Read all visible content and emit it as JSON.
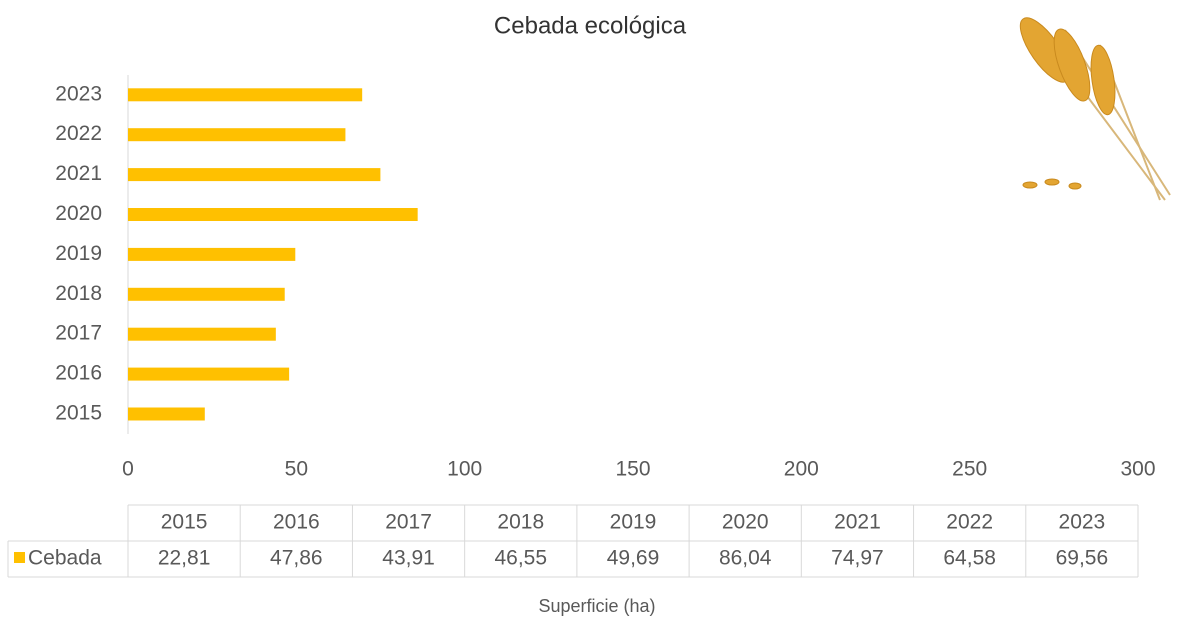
{
  "chart_data": {
    "type": "bar",
    "title": "Cebada ecológica",
    "x_label": "Superficie (ha)",
    "categories": [
      "2015",
      "2016",
      "2017",
      "2018",
      "2019",
      "2020",
      "2021",
      "2022",
      "2023"
    ],
    "series": [
      {
        "name": "Cebada",
        "color": "#ffc000",
        "values": [
          22.81,
          47.86,
          43.91,
          46.55,
          49.69,
          86.04,
          74.97,
          64.58,
          69.56
        ],
        "value_labels": [
          "22,81",
          "47,86",
          "43,91",
          "46,55",
          "49,69",
          "86,04",
          "74,97",
          "64,58",
          "69,56"
        ]
      }
    ],
    "xlim": [
      0,
      300
    ],
    "xticks": [
      0,
      50,
      100,
      150,
      200,
      250,
      300
    ],
    "data_table": true
  }
}
